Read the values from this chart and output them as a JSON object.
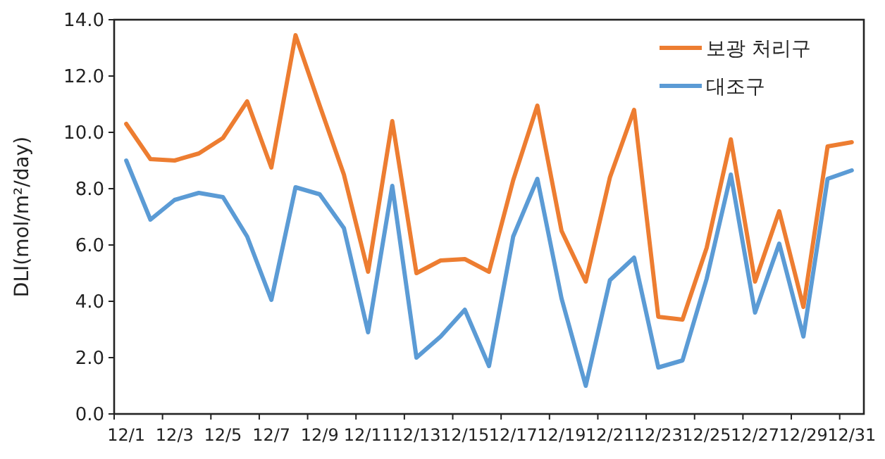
{
  "chart_data": {
    "type": "line",
    "ylabel": "DLI(mol/m²/day)",
    "categories": [
      "12/1",
      null,
      "12/3",
      null,
      "12/5",
      null,
      "12/7",
      null,
      "12/9",
      null,
      "12/11",
      null,
      "12/13",
      null,
      "12/15",
      null,
      "12/17",
      null,
      "12/19",
      null,
      "12/21",
      null,
      "12/23",
      null,
      "12/25",
      null,
      "12/27",
      null,
      "12/29",
      null,
      "12/31"
    ],
    "series": [
      {
        "name": "보광 처리구",
        "color": "#ed7d31",
        "values": [
          10.3,
          9.05,
          9.0,
          9.25,
          9.8,
          11.1,
          8.75,
          13.45,
          10.95,
          8.5,
          5.05,
          10.4,
          5.0,
          5.45,
          5.5,
          5.05,
          8.3,
          10.95,
          6.5,
          4.7,
          8.4,
          10.8,
          3.45,
          3.35,
          5.9,
          9.75,
          4.7,
          7.2,
          3.8,
          9.5,
          9.65
        ]
      },
      {
        "name": "대조구",
        "color": "#5b9bd5",
        "values": [
          9.0,
          6.9,
          7.6,
          7.85,
          7.7,
          6.3,
          4.05,
          8.05,
          7.8,
          6.6,
          2.9,
          8.1,
          2.0,
          2.75,
          3.7,
          1.7,
          6.3,
          8.35,
          4.1,
          1.0,
          4.75,
          5.55,
          1.65,
          1.9,
          4.8,
          8.5,
          3.6,
          6.05,
          2.75,
          8.35,
          8.65
        ]
      }
    ],
    "ylim": [
      0,
      14
    ],
    "yticks": [
      {
        "value": 0,
        "label": "0.0"
      },
      {
        "value": 2,
        "label": "2.0"
      },
      {
        "value": 4,
        "label": "4.0"
      },
      {
        "value": 6,
        "label": "6.0"
      },
      {
        "value": 8,
        "label": "8.0"
      },
      {
        "value": 10,
        "label": "10.0"
      },
      {
        "value": 12,
        "label": "12.0"
      },
      {
        "value": 14,
        "label": "14.0"
      }
    ],
    "grid": false,
    "legend": "top right",
    "marker": "none",
    "line_style": "solid"
  }
}
